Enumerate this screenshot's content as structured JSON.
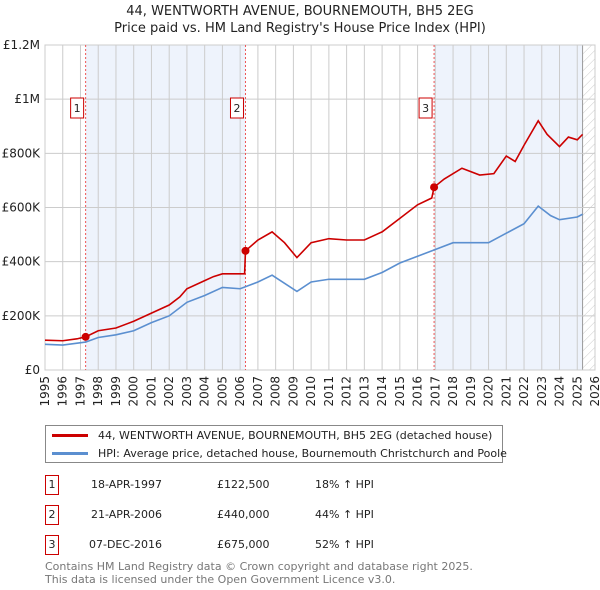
{
  "chart_data": {
    "type": "line",
    "title": "44, WENTWORTH AVENUE, BOURNEMOUTH, BH5 2EG",
    "subtitle": "Price paid vs. HM Land Registry's House Price Index (HPI)",
    "xlim": [
      1995,
      2026
    ],
    "ylim": [
      0,
      1200000
    ],
    "x_ticks": [
      "1995",
      "1996",
      "1997",
      "1998",
      "1999",
      "2000",
      "2001",
      "2002",
      "2003",
      "2004",
      "2005",
      "2006",
      "2007",
      "2008",
      "2009",
      "2010",
      "2011",
      "2012",
      "2013",
      "2014",
      "2015",
      "2016",
      "2017",
      "2018",
      "2019",
      "2020",
      "2021",
      "2022",
      "2023",
      "2024",
      "2025",
      "2026"
    ],
    "y_ticks": [
      {
        "v": 0,
        "label": "£0"
      },
      {
        "v": 200000,
        "label": "£200K"
      },
      {
        "v": 400000,
        "label": "£400K"
      },
      {
        "v": 600000,
        "label": "£600K"
      },
      {
        "v": 800000,
        "label": "£800K"
      },
      {
        "v": 1000000,
        "label": "£1M"
      },
      {
        "v": 1200000,
        "label": "£1.2M"
      }
    ],
    "grid": true,
    "shaded_ranges": [
      [
        1997.29,
        2006.3
      ],
      [
        2016.93,
        2025.3
      ]
    ],
    "forecast_from": 2025.3,
    "series": [
      {
        "name": "44, WENTWORTH AVENUE, BOURNEMOUTH, BH5 2EG (detached house)",
        "color": "#cc0000",
        "points": [
          [
            1995,
            110000
          ],
          [
            1996,
            108000
          ],
          [
            1996.8,
            115000
          ],
          [
            1997.29,
            122500
          ],
          [
            1998,
            145000
          ],
          [
            1999,
            155000
          ],
          [
            2000,
            180000
          ],
          [
            2001,
            210000
          ],
          [
            2002,
            240000
          ],
          [
            2002.6,
            270000
          ],
          [
            2003,
            300000
          ],
          [
            2004,
            330000
          ],
          [
            2004.5,
            345000
          ],
          [
            2005,
            355000
          ],
          [
            2006.25,
            355000
          ],
          [
            2006.3,
            440000
          ],
          [
            2007,
            480000
          ],
          [
            2007.8,
            510000
          ],
          [
            2008.5,
            470000
          ],
          [
            2009.2,
            415000
          ],
          [
            2010,
            470000
          ],
          [
            2011,
            485000
          ],
          [
            2012,
            480000
          ],
          [
            2013,
            480000
          ],
          [
            2014,
            510000
          ],
          [
            2015,
            560000
          ],
          [
            2016,
            610000
          ],
          [
            2016.8,
            635000
          ],
          [
            2016.93,
            675000
          ],
          [
            2017.5,
            705000
          ],
          [
            2018.5,
            745000
          ],
          [
            2019.5,
            720000
          ],
          [
            2020.3,
            725000
          ],
          [
            2021,
            790000
          ],
          [
            2021.5,
            770000
          ],
          [
            2022,
            830000
          ],
          [
            2022.8,
            920000
          ],
          [
            2023.3,
            870000
          ],
          [
            2024,
            825000
          ],
          [
            2024.5,
            860000
          ],
          [
            2025,
            850000
          ],
          [
            2025.3,
            870000
          ]
        ]
      },
      {
        "name": "HPI: Average price, detached house, Bournemouth Christchurch and Poole",
        "color": "#5b8fd0",
        "points": [
          [
            1995,
            95000
          ],
          [
            1996,
            92000
          ],
          [
            1997.29,
            103000
          ],
          [
            1998,
            120000
          ],
          [
            1999,
            130000
          ],
          [
            2000,
            145000
          ],
          [
            2001,
            175000
          ],
          [
            2002,
            200000
          ],
          [
            2003,
            250000
          ],
          [
            2004,
            275000
          ],
          [
            2005,
            305000
          ],
          [
            2006,
            300000
          ],
          [
            2007,
            325000
          ],
          [
            2007.8,
            350000
          ],
          [
            2009.2,
            290000
          ],
          [
            2010,
            325000
          ],
          [
            2011,
            335000
          ],
          [
            2012,
            335000
          ],
          [
            2013,
            335000
          ],
          [
            2014,
            360000
          ],
          [
            2015,
            395000
          ],
          [
            2016,
            420000
          ],
          [
            2017,
            445000
          ],
          [
            2018,
            470000
          ],
          [
            2019,
            470000
          ],
          [
            2020,
            470000
          ],
          [
            2021,
            505000
          ],
          [
            2022,
            540000
          ],
          [
            2022.8,
            605000
          ],
          [
            2023.5,
            570000
          ],
          [
            2024,
            555000
          ],
          [
            2025,
            565000
          ],
          [
            2025.3,
            575000
          ]
        ]
      }
    ],
    "sales": [
      {
        "id": "1",
        "x": 1997.29,
        "y": 122500,
        "date": "18-APR-1997",
        "price": "£122,500",
        "hpi": "18% ↑ HPI"
      },
      {
        "id": "2",
        "x": 2006.3,
        "y": 440000,
        "date": "21-APR-2006",
        "price": "£440,000",
        "hpi": "44% ↑ HPI"
      },
      {
        "id": "3",
        "x": 2016.93,
        "y": 675000,
        "date": "07-DEC-2016",
        "price": "£675,000",
        "hpi": "52% ↑ HPI"
      }
    ]
  },
  "footer": [
    "Contains HM Land Registry data © Crown copyright and database right 2025.",
    "This data is licensed under the Open Government Licence v3.0."
  ]
}
